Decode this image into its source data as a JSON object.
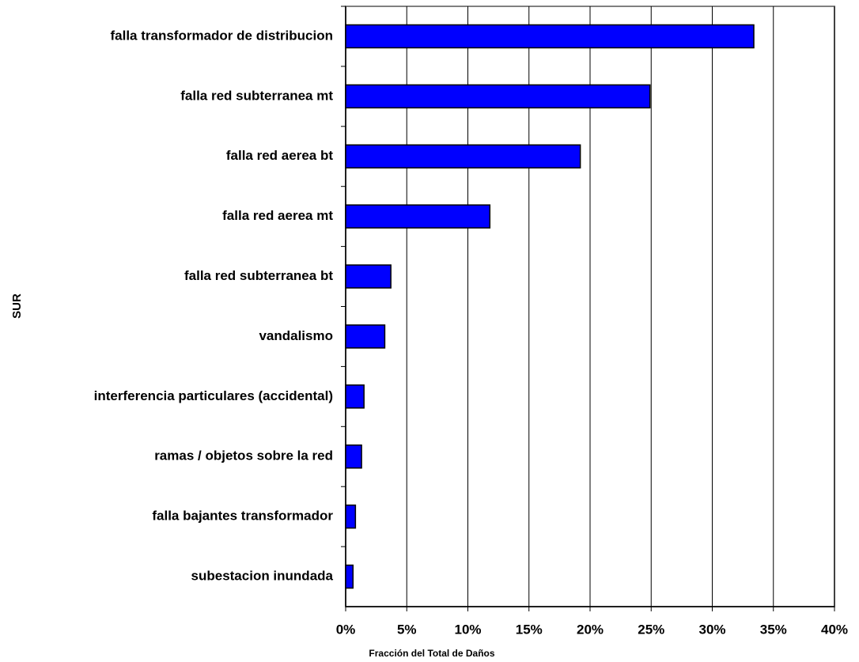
{
  "chart_data": {
    "type": "bar",
    "orientation": "horizontal",
    "xlabel": "Fracción del Total de Daños",
    "ylabel": "SUR",
    "categories": [
      "falla transformador de distribucion",
      "falla red subterranea mt",
      "falla red aerea bt",
      "falla red aerea mt",
      "falla red subterranea bt",
      "vandalismo",
      "interferencia particulares (accidental)",
      "ramas / objetos sobre la red",
      "falla bajantes transformador",
      "subestacion inundada"
    ],
    "values": [
      33.4,
      24.9,
      19.2,
      11.8,
      3.7,
      3.2,
      1.5,
      1.3,
      0.8,
      0.6
    ],
    "color": "#0000ff",
    "xlim": [
      0,
      40
    ],
    "xticks": [
      {
        "value": 0,
        "label": "0%"
      },
      {
        "value": 5,
        "label": "5%"
      },
      {
        "value": 10,
        "label": "10%"
      },
      {
        "value": 15,
        "label": "15%"
      },
      {
        "value": 20,
        "label": "20%"
      },
      {
        "value": 25,
        "label": "25%"
      },
      {
        "value": 30,
        "label": "30%"
      },
      {
        "value": 35,
        "label": "35%"
      },
      {
        "value": 40,
        "label": "40%"
      }
    ],
    "grid": true
  }
}
